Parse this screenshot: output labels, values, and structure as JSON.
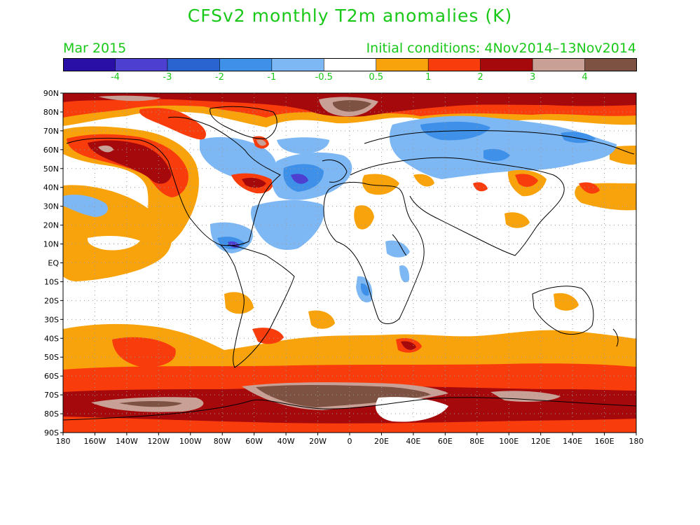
{
  "header": {
    "title": "CFSv2 monthly T2m anomalies (K)",
    "period": "Mar 2015",
    "initial_conditions": "Initial conditions: 4Nov2014–13Nov2014"
  },
  "colorbar": {
    "colors": [
      "#2a0fa6",
      "#4d3fd0",
      "#2a64d0",
      "#3f90e8",
      "#7eb8f4",
      "#ffffff",
      "#f8a30c",
      "#f83c0c",
      "#a5090c",
      "#c9a096",
      "#7d5242"
    ],
    "labels": [
      "-4",
      "-3",
      "-2",
      "-1",
      "-0.5",
      "0.5",
      "1",
      "2",
      "3",
      "4"
    ]
  },
  "axes": {
    "lat_labels": [
      "90N",
      "80N",
      "70N",
      "60N",
      "50N",
      "40N",
      "30N",
      "20N",
      "10N",
      "EQ",
      "10S",
      "20S",
      "30S",
      "40S",
      "50S",
      "60S",
      "70S",
      "80S",
      "90S"
    ],
    "lon_labels": [
      "180",
      "160W",
      "140W",
      "120W",
      "100W",
      "80W",
      "60W",
      "40W",
      "20W",
      "0",
      "20E",
      "40E",
      "60E",
      "80E",
      "100E",
      "120E",
      "140E",
      "160E",
      "180"
    ]
  },
  "colors": {
    "label_green": "#19c818",
    "grid": "#9a9a9a",
    "coast": "#000000"
  }
}
